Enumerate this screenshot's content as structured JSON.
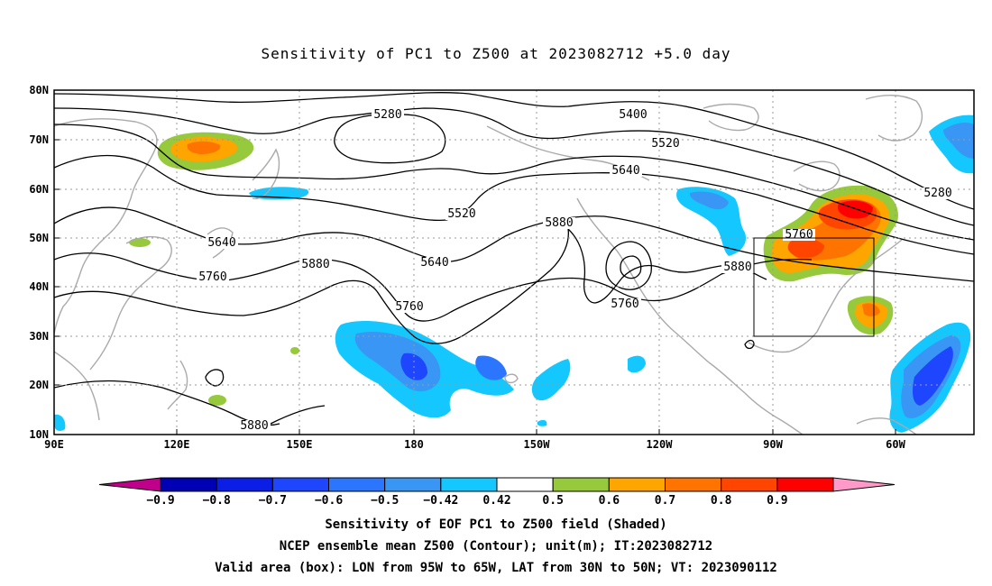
{
  "title": "Sensitivity of PC1 to Z500 at 2023082712 +5.0 day",
  "lat_labels": [
    "80N",
    "70N",
    "60N",
    "50N",
    "40N",
    "30N",
    "20N",
    "10N"
  ],
  "lon_labels": [
    "90E",
    "120E",
    "150E",
    "180",
    "150W",
    "120W",
    "90W",
    "60W"
  ],
  "contour_labels": [
    "5280",
    "5400",
    "5520",
    "5640",
    "5880",
    "5520",
    "5640",
    "5760",
    "5640",
    "5880",
    "5760",
    "5760",
    "5760",
    "5880",
    "5280",
    "5880"
  ],
  "colorbar": {
    "labels": [
      "-0.9",
      "-0.8",
      "-0.7",
      "-0.6",
      "-0.5",
      "-0.42",
      "0.42",
      "0.5",
      "0.6",
      "0.7",
      "0.8",
      "0.9"
    ],
    "colors": [
      "#c0008a",
      "#0000b4",
      "#0a1ee6",
      "#1e46ff",
      "#2c75ff",
      "#3a96f4",
      "#14c8ff",
      "#ffffff",
      "#96c93c",
      "#ffa500",
      "#ff7300",
      "#ff4500",
      "#ff0000",
      "#ff9ac8"
    ]
  },
  "footer": {
    "line1": "Sensitivity of EOF PC1 to Z500 field (Shaded)",
    "line2": "NCEP ensemble mean Z500 (Contour); unit(m); IT:2023082712",
    "line3": "Valid area (box): LON from 95W to 65W, LAT from 30N to 50N; VT: 2023090112"
  }
}
